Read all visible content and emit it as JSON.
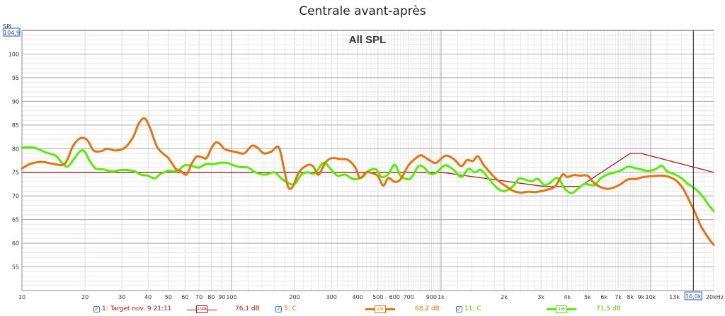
{
  "title": "Centrale avant-après",
  "colors": {
    "target": "#b01818",
    "series_c5": "#e8720c",
    "series_c11": "#55ee00",
    "grid_major": "#a8a8a8",
    "grid_minor": "#dddddd",
    "cursor": "#222222",
    "axis_box": "#2050c0"
  },
  "chart_data": {
    "type": "line",
    "title": "All SPL",
    "y_axis_label": "SPL",
    "x_scale": "log",
    "xlim": [
      10,
      20000
    ],
    "ylim": [
      50,
      105
    ],
    "y_readout": "104,9",
    "x_cursor": 16000,
    "x_cursor_label": "16,0k",
    "x_ticks": [
      {
        "v": 10,
        "t": "10"
      },
      {
        "v": 20,
        "t": "20"
      },
      {
        "v": 30,
        "t": "30"
      },
      {
        "v": 40,
        "t": "40"
      },
      {
        "v": 50,
        "t": "50"
      },
      {
        "v": 60,
        "t": "60"
      },
      {
        "v": 70,
        "t": "70"
      },
      {
        "v": 80,
        "t": "80"
      },
      {
        "v": 90,
        "t": "90"
      },
      {
        "v": 100,
        "t": "100"
      },
      {
        "v": 200,
        "t": "200"
      },
      {
        "v": 300,
        "t": "300"
      },
      {
        "v": 400,
        "t": "400"
      },
      {
        "v": 500,
        "t": "500"
      },
      {
        "v": 600,
        "t": "600"
      },
      {
        "v": 700,
        "t": "700"
      },
      {
        "v": 900,
        "t": "900"
      },
      {
        "v": 1000,
        "t": "1k"
      },
      {
        "v": 2000,
        "t": "2k"
      },
      {
        "v": 3000,
        "t": "3k"
      },
      {
        "v": 4000,
        "t": "4k"
      },
      {
        "v": 5000,
        "t": "5k"
      },
      {
        "v": 6000,
        "t": "6k"
      },
      {
        "v": 7000,
        "t": "7k"
      },
      {
        "v": 8000,
        "t": "8k"
      },
      {
        "v": 9000,
        "t": "9k"
      },
      {
        "v": 10000,
        "t": "10k"
      },
      {
        "v": 13000,
        "t": "13k"
      },
      {
        "v": 20000,
        "t": "20kHz"
      }
    ],
    "y_ticks": [
      55,
      60,
      65,
      70,
      75,
      80,
      85,
      90,
      95,
      100
    ],
    "series": [
      {
        "name": "1: Target nov. 9 21:11",
        "smoothing": "1/48",
        "level": "76,1 dB",
        "points": [
          [
            10,
            75
          ],
          [
            1000,
            75
          ],
          [
            3100,
            72
          ],
          [
            4600,
            72
          ],
          [
            8000,
            79
          ],
          [
            9000,
            79
          ],
          [
            20000,
            75
          ]
        ]
      },
      {
        "name": "5: C",
        "smoothing": "1/6",
        "level": "68,2 dB",
        "points": [
          [
            10,
            75.8
          ],
          [
            11,
            76.8
          ],
          [
            12.5,
            77.2
          ],
          [
            14,
            76.8
          ],
          [
            16,
            76.8
          ],
          [
            17.5,
            80.5
          ],
          [
            19,
            82.2
          ],
          [
            20.5,
            81.8
          ],
          [
            22,
            79.6
          ],
          [
            24,
            79.5
          ],
          [
            25.5,
            80.0
          ],
          [
            28,
            79.6
          ],
          [
            31,
            80.2
          ],
          [
            34,
            82.5
          ],
          [
            36,
            85.2
          ],
          [
            38.5,
            86.4
          ],
          [
            41,
            84.2
          ],
          [
            44,
            80.5
          ],
          [
            47,
            79.0
          ],
          [
            50,
            78.0
          ],
          [
            54,
            75.8
          ],
          [
            57,
            75.3
          ],
          [
            61,
            74.5
          ],
          [
            64,
            76.5
          ],
          [
            68,
            78.3
          ],
          [
            72,
            78.2
          ],
          [
            76,
            78.0
          ],
          [
            80,
            80.0
          ],
          [
            84,
            81.3
          ],
          [
            88,
            81.0
          ],
          [
            92,
            80.0
          ],
          [
            97,
            79.6
          ],
          [
            105,
            79.3
          ],
          [
            115,
            79.0
          ],
          [
            125,
            80.6
          ],
          [
            133,
            80.2
          ],
          [
            143,
            79.0
          ],
          [
            155,
            79.4
          ],
          [
            168,
            80.3
          ],
          [
            178,
            75.8
          ],
          [
            186,
            72.0
          ],
          [
            195,
            71.8
          ],
          [
            210,
            75.0
          ],
          [
            230,
            76.5
          ],
          [
            245,
            76.3
          ],
          [
            260,
            74.5
          ],
          [
            280,
            77.0
          ],
          [
            300,
            78.0
          ],
          [
            330,
            77.8
          ],
          [
            360,
            77.6
          ],
          [
            390,
            76.0
          ],
          [
            410,
            73.8
          ],
          [
            440,
            75.0
          ],
          [
            470,
            74.8
          ],
          [
            500,
            74.2
          ],
          [
            530,
            72.2
          ],
          [
            560,
            73.8
          ],
          [
            600,
            73.0
          ],
          [
            640,
            73.5
          ],
          [
            700,
            76.5
          ],
          [
            750,
            77.8
          ],
          [
            800,
            78.6
          ],
          [
            850,
            78.0
          ],
          [
            900,
            77.3
          ],
          [
            950,
            77.0
          ],
          [
            1050,
            78.5
          ],
          [
            1150,
            77.8
          ],
          [
            1250,
            76.3
          ],
          [
            1330,
            77.6
          ],
          [
            1420,
            77.4
          ],
          [
            1500,
            78.4
          ],
          [
            1600,
            76.5
          ],
          [
            1750,
            74.5
          ],
          [
            1900,
            73.0
          ],
          [
            2050,
            72.0
          ],
          [
            2200,
            71.1
          ],
          [
            2400,
            70.7
          ],
          [
            2600,
            70.9
          ],
          [
            2800,
            70.8
          ],
          [
            3000,
            71.0
          ],
          [
            3200,
            71.3
          ],
          [
            3500,
            72.0
          ],
          [
            3800,
            74.5
          ],
          [
            4000,
            74.0
          ],
          [
            4300,
            74.4
          ],
          [
            4600,
            74.3
          ],
          [
            5000,
            74.3
          ],
          [
            5300,
            73.0
          ],
          [
            5700,
            72.0
          ],
          [
            6200,
            71.5
          ],
          [
            6700,
            71.8
          ],
          [
            7200,
            72.5
          ],
          [
            7800,
            73.5
          ],
          [
            8500,
            73.6
          ],
          [
            9300,
            74.0
          ],
          [
            10300,
            74.2
          ],
          [
            11300,
            74.3
          ],
          [
            12300,
            74.0
          ],
          [
            13300,
            73.2
          ],
          [
            14300,
            71.5
          ],
          [
            15300,
            69.0
          ],
          [
            16300,
            66.5
          ],
          [
            17300,
            63.8
          ],
          [
            18300,
            62.0
          ],
          [
            19300,
            60.5
          ],
          [
            20000,
            59.7
          ]
        ]
      },
      {
        "name": "11: C",
        "smoothing": "1/6",
        "level": "71,5 dB",
        "points": [
          [
            10,
            80.2
          ],
          [
            11,
            80.3
          ],
          [
            12,
            79.9
          ],
          [
            13,
            79.2
          ],
          [
            14.5,
            78.5
          ],
          [
            15.5,
            77.0
          ],
          [
            16.5,
            76.2
          ],
          [
            17.5,
            77.5
          ],
          [
            19,
            79.5
          ],
          [
            20,
            79.3
          ],
          [
            21,
            77.5
          ],
          [
            22.5,
            75.8
          ],
          [
            24.5,
            75.6
          ],
          [
            27,
            75.2
          ],
          [
            30,
            75.5
          ],
          [
            34,
            75.3
          ],
          [
            37,
            74.5
          ],
          [
            40,
            74.3
          ],
          [
            43,
            73.7
          ],
          [
            46,
            74.7
          ],
          [
            50,
            75.3
          ],
          [
            55,
            75.3
          ],
          [
            60,
            76.5
          ],
          [
            65,
            76.3
          ],
          [
            70,
            76.0
          ],
          [
            76,
            76.8
          ],
          [
            82,
            76.7
          ],
          [
            88,
            77.0
          ],
          [
            95,
            77.0
          ],
          [
            102,
            76.5
          ],
          [
            110,
            76.1
          ],
          [
            120,
            76.0
          ],
          [
            130,
            75.0
          ],
          [
            145,
            74.5
          ],
          [
            160,
            75.0
          ],
          [
            172,
            73.8
          ],
          [
            185,
            72.8
          ],
          [
            200,
            72.5
          ],
          [
            215,
            74.5
          ],
          [
            230,
            75.0
          ],
          [
            250,
            74.8
          ],
          [
            275,
            77.0
          ],
          [
            300,
            75.5
          ],
          [
            320,
            74.3
          ],
          [
            350,
            74.5
          ],
          [
            380,
            73.6
          ],
          [
            420,
            73.9
          ],
          [
            450,
            75.3
          ],
          [
            490,
            75.6
          ],
          [
            520,
            74.0
          ],
          [
            560,
            74.6
          ],
          [
            600,
            76.6
          ],
          [
            640,
            74.3
          ],
          [
            680,
            73.6
          ],
          [
            720,
            73.8
          ],
          [
            780,
            76.3
          ],
          [
            830,
            76.0
          ],
          [
            880,
            74.8
          ],
          [
            930,
            74.7
          ],
          [
            980,
            75.5
          ],
          [
            1050,
            76.5
          ],
          [
            1150,
            75.5
          ],
          [
            1250,
            74.0
          ],
          [
            1350,
            75.7
          ],
          [
            1450,
            75.0
          ],
          [
            1550,
            75.5
          ],
          [
            1700,
            73.5
          ],
          [
            1850,
            71.7
          ],
          [
            2000,
            71.0
          ],
          [
            2200,
            72.0
          ],
          [
            2350,
            73.6
          ],
          [
            2500,
            73.5
          ],
          [
            2700,
            73.1
          ],
          [
            2900,
            73.6
          ],
          [
            3100,
            72.3
          ],
          [
            3300,
            72.7
          ],
          [
            3600,
            73.8
          ],
          [
            3900,
            71.5
          ],
          [
            4200,
            70.6
          ],
          [
            4500,
            71.5
          ],
          [
            4800,
            72.5
          ],
          [
            5100,
            72.4
          ],
          [
            5400,
            72.3
          ],
          [
            5800,
            73.8
          ],
          [
            6300,
            74.6
          ],
          [
            6800,
            75.0
          ],
          [
            7300,
            75.5
          ],
          [
            7800,
            76.2
          ],
          [
            8400,
            75.9
          ],
          [
            9000,
            75.6
          ],
          [
            9700,
            75.3
          ],
          [
            10500,
            75.6
          ],
          [
            11300,
            76.4
          ],
          [
            12000,
            75.2
          ],
          [
            13000,
            74.6
          ],
          [
            14000,
            73.8
          ],
          [
            15000,
            72.6
          ],
          [
            16000,
            71.8
          ],
          [
            17000,
            70.8
          ],
          [
            18000,
            69.5
          ],
          [
            19000,
            68.0
          ],
          [
            20000,
            66.8
          ]
        ]
      }
    ]
  },
  "legend": [
    {
      "checkbox": "✓",
      "label": "1: Target nov. 9 21:11",
      "smoothing": "1/48",
      "level": "76,1 dB"
    },
    {
      "checkbox": "✓",
      "label": "5: C",
      "smoothing": "1/6",
      "level": "68,2 dB"
    },
    {
      "checkbox": "✓",
      "label": "11: C",
      "smoothing": "1/6",
      "level": "71,5 dB"
    }
  ]
}
